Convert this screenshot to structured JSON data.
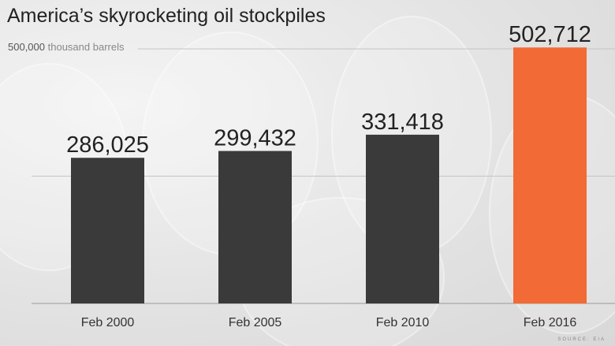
{
  "chart_data": {
    "type": "bar",
    "title": "America’s skyrocketing oil stockpiles",
    "unit_label_value": "500,000",
    "unit_label_text": "thousand barrels",
    "categories": [
      "Feb 2000",
      "Feb 2005",
      "Feb 2010",
      "Feb 2016"
    ],
    "values": [
      286025,
      299432,
      331418,
      502712
    ],
    "value_labels": [
      "286,025",
      "299,432",
      "331,418",
      "502,712"
    ],
    "ylim": [
      0,
      500000
    ],
    "gridlines": [
      250000,
      500000
    ],
    "colors": {
      "default": "#3a3a3a",
      "highlight": "#f26a35"
    },
    "highlight_index": 3,
    "source": "SOURCE: EIA"
  }
}
